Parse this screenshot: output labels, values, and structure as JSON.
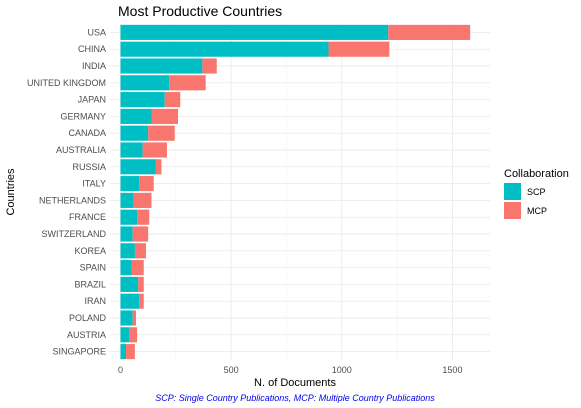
{
  "chart_data": {
    "type": "bar",
    "orientation": "horizontal",
    "stacked": true,
    "title": "Most Productive Countries",
    "xlabel": "N. of Documents",
    "ylabel": "Countries",
    "caption": "SCP: Single Country Publications, MCP: Multiple Country Publications",
    "xlim": [
      0,
      1660
    ],
    "xticks": [
      0,
      500,
      1000,
      1500
    ],
    "grid": true,
    "legend_position": "right",
    "legend_title": "Collaboration",
    "categories": [
      "USA",
      "CHINA",
      "INDIA",
      "UNITED KINGDOM",
      "JAPAN",
      "GERMANY",
      "CANADA",
      "AUSTRALIA",
      "RUSSIA",
      "ITALY",
      "NETHERLANDS",
      "FRANCE",
      "SWITZERLAND",
      "KOREA",
      "SPAIN",
      "BRAZIL",
      "IRAN",
      "POLAND",
      "AUSTRIA",
      "SINGAPORE"
    ],
    "series": [
      {
        "name": "SCP",
        "color": "#00BFC4",
        "values": [
          1210,
          940,
          370,
          220,
          200,
          140,
          125,
          100,
          160,
          85,
          60,
          75,
          55,
          65,
          50,
          80,
          85,
          55,
          40,
          25
        ]
      },
      {
        "name": "MCP",
        "color": "#F8766D",
        "values": [
          370,
          275,
          65,
          165,
          70,
          120,
          120,
          110,
          25,
          65,
          80,
          55,
          70,
          50,
          55,
          25,
          20,
          15,
          35,
          40
        ]
      }
    ]
  }
}
